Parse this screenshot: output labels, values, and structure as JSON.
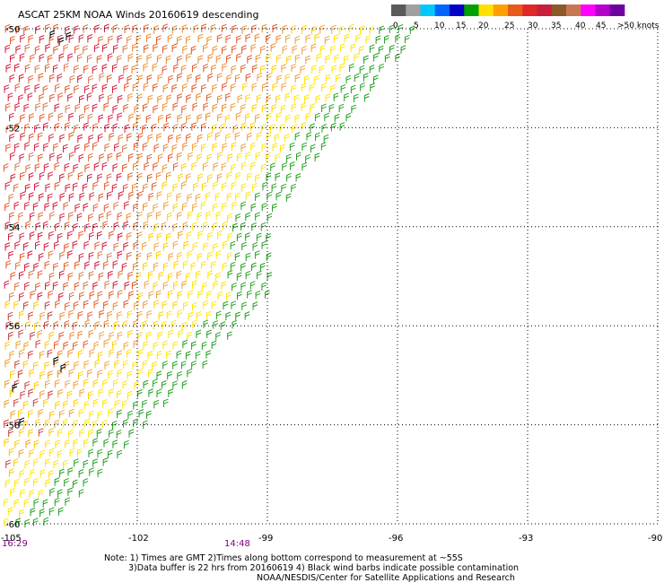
{
  "title": "ASCAT 25KM NOAA Winds 20160619 descending",
  "legend": {
    "colors": [
      "#5a5a5a",
      "#a0a0a0",
      "#00c8ff",
      "#0064ff",
      "#0000c8",
      "#00a000",
      "#ffe000",
      "#ffa000",
      "#e85a1a",
      "#e02828",
      "#c81e3c",
      "#8b5a2b",
      "#c87850",
      "#ff00ff",
      "#b400c8",
      "#6e00a0"
    ],
    "labels": [
      "0",
      "5",
      "10",
      "15",
      "20",
      "25",
      "30",
      "35",
      "40",
      "45",
      ">50 knots"
    ]
  },
  "lat_labels": [
    "-50",
    "-52",
    "-54",
    "-56",
    "-58",
    "-60"
  ],
  "lon_labels": [
    "-105",
    "-102",
    "-99",
    "-96",
    "-93",
    "-90"
  ],
  "times": [
    "16:29",
    "14:48"
  ],
  "notes": {
    "line1": "Note: 1) Times are GMT 2)Times along bottom correspond to measurement at ~55S",
    "line2": "3)Data buffer is 22 hrs from 20160619 4) Black wind barbs indicate possible contamination",
    "line3": "NOAA/NESDIS/Center for Satellite Applications and Research"
  },
  "map": {
    "lon_range": [
      -105,
      -90
    ],
    "lat_range": [
      -60,
      -50
    ],
    "grid": "dotted"
  }
}
